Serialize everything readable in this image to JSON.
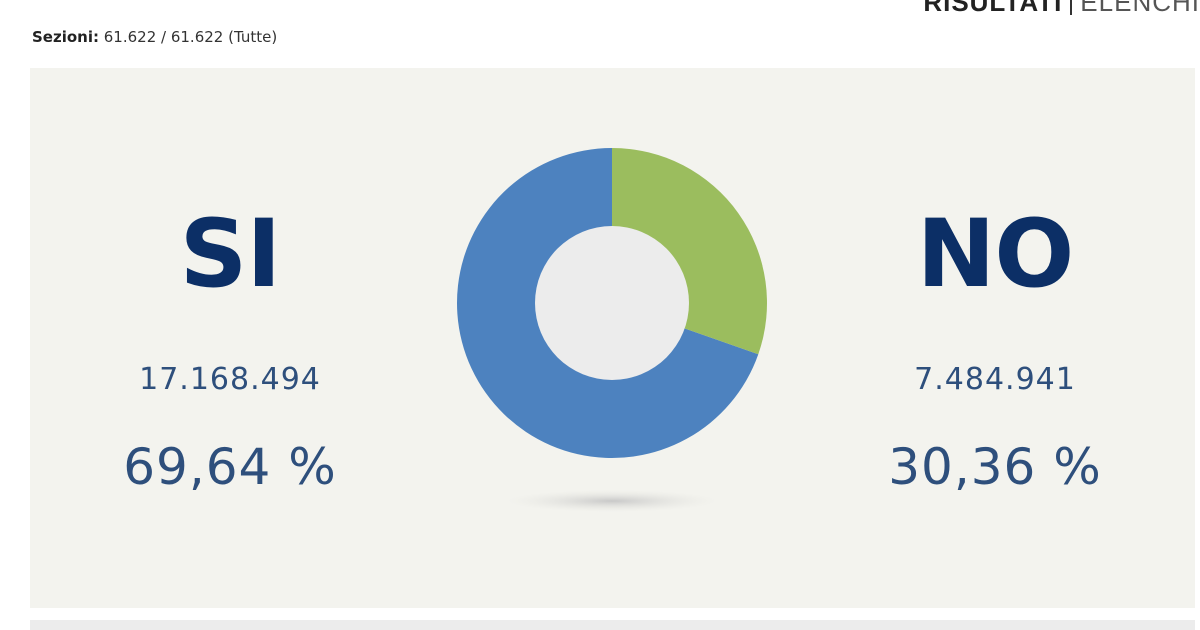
{
  "nav": {
    "risultati": "RISULTATI",
    "elenchi": "ELENCHI"
  },
  "sezioni": {
    "label": "Sezioni:",
    "value": "61.622 / 61.622 (Tutte)"
  },
  "si": {
    "label": "SI",
    "votes": "17.168.494",
    "percent": "69,64 %"
  },
  "no": {
    "label": "NO",
    "votes": "7.484.941",
    "percent": "30,36 %"
  },
  "colors": {
    "si": "#4d82bf",
    "no": "#9bbd5e",
    "center": "#ececec",
    "text_dark": "#0c2f66"
  },
  "chart_data": {
    "type": "pie",
    "categories": [
      "SI",
      "NO"
    ],
    "values": [
      69.64,
      30.36
    ],
    "title": ""
  }
}
